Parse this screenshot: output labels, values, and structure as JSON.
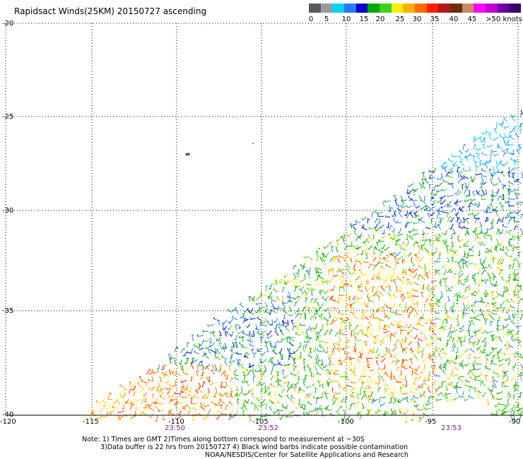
{
  "title": "Rapidsact Winds(25KM) 20150727 ascending",
  "legend": {
    "colors": [
      "#5a5a5a",
      "#9a9a9a",
      "#00d4ee",
      "#2a78ff",
      "#0000c8",
      "#00a800",
      "#3ad020",
      "#ffee00",
      "#ffb000",
      "#ff6a00",
      "#ff1e00",
      "#b01818",
      "#6a3010",
      "#cc8866",
      "#ff00ff",
      "#c000d0",
      "#6a00a8",
      "#3a0070"
    ],
    "labels": [
      "0",
      "5",
      "10",
      "15",
      "20",
      "25",
      "30",
      "35",
      "40",
      "45",
      ">50 knots"
    ]
  },
  "map": {
    "lat_labels": [
      "-20",
      "-25",
      "-30",
      "-35",
      "-40"
    ],
    "lon_labels": [
      "-120",
      "-115",
      "-110",
      "-105",
      "-100",
      "-95",
      "-90"
    ],
    "time_labels": [
      "23:50",
      "23:52",
      "23:53"
    ]
  },
  "notes": {
    "line1": "Note: 1) Times are GMT 2)Times along bottom correspond to measurement at ~30S",
    "line2": "3)Data buffer is 22 hrs from 20150727 4) Black wind barbs indicate possible contamination",
    "line3": "NOAA/NESDIS/Center for Satellite Applications and Research"
  }
}
